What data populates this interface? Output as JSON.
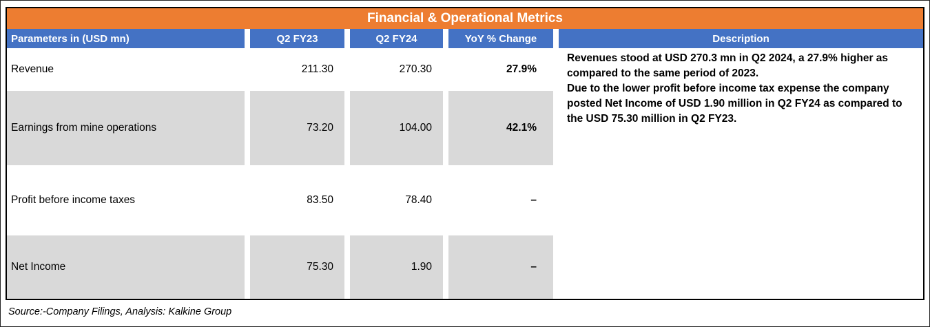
{
  "title": "Financial & Operational Metrics",
  "header": {
    "param": "Parameters in (USD mn)",
    "q2fy23": "Q2 FY23",
    "q2fy24": "Q2 FY24",
    "yoy": "YoY % Change",
    "description": "Description"
  },
  "rows": [
    {
      "param": "Revenue",
      "q2fy23": "211.30",
      "q2fy24": "270.30",
      "yoy": "27.9%"
    },
    {
      "param": "Earnings from mine operations",
      "q2fy23": "73.20",
      "q2fy24": "104.00",
      "yoy": "42.1%"
    },
    {
      "param": "Profit before income taxes",
      "q2fy23": "83.50",
      "q2fy24": "78.40",
      "yoy": "–"
    },
    {
      "param": "Net Income",
      "q2fy23": "75.30",
      "q2fy24": "1.90",
      "yoy": "–"
    }
  ],
  "description": {
    "para1": "Revenues stood at USD 270.3 mn in Q2 2024, a 27.9% higher as compared to the same period of 2023.",
    "para2": "Due to the lower profit before income tax expense the company posted Net Income of USD 1.90 million in Q2 FY24 as compared to the USD 75.30 million in Q2 FY23."
  },
  "source": "Source:-Company Filings, Analysis: Kalkine Group",
  "colors": {
    "title_bg": "#ED7D31",
    "header_bg": "#4472C4",
    "shaded_row_bg": "#D9D9D9"
  },
  "chart_data": {
    "type": "table",
    "title": "Financial & Operational Metrics",
    "columns": [
      "Parameters in (USD mn)",
      "Q2 FY23",
      "Q2 FY24",
      "YoY % Change"
    ],
    "rows": [
      [
        "Revenue",
        211.3,
        270.3,
        "27.9%"
      ],
      [
        "Earnings from mine operations",
        73.2,
        104.0,
        "42.1%"
      ],
      [
        "Profit before income taxes",
        83.5,
        78.4,
        "–"
      ],
      [
        "Net Income",
        75.3,
        1.9,
        "–"
      ]
    ]
  }
}
